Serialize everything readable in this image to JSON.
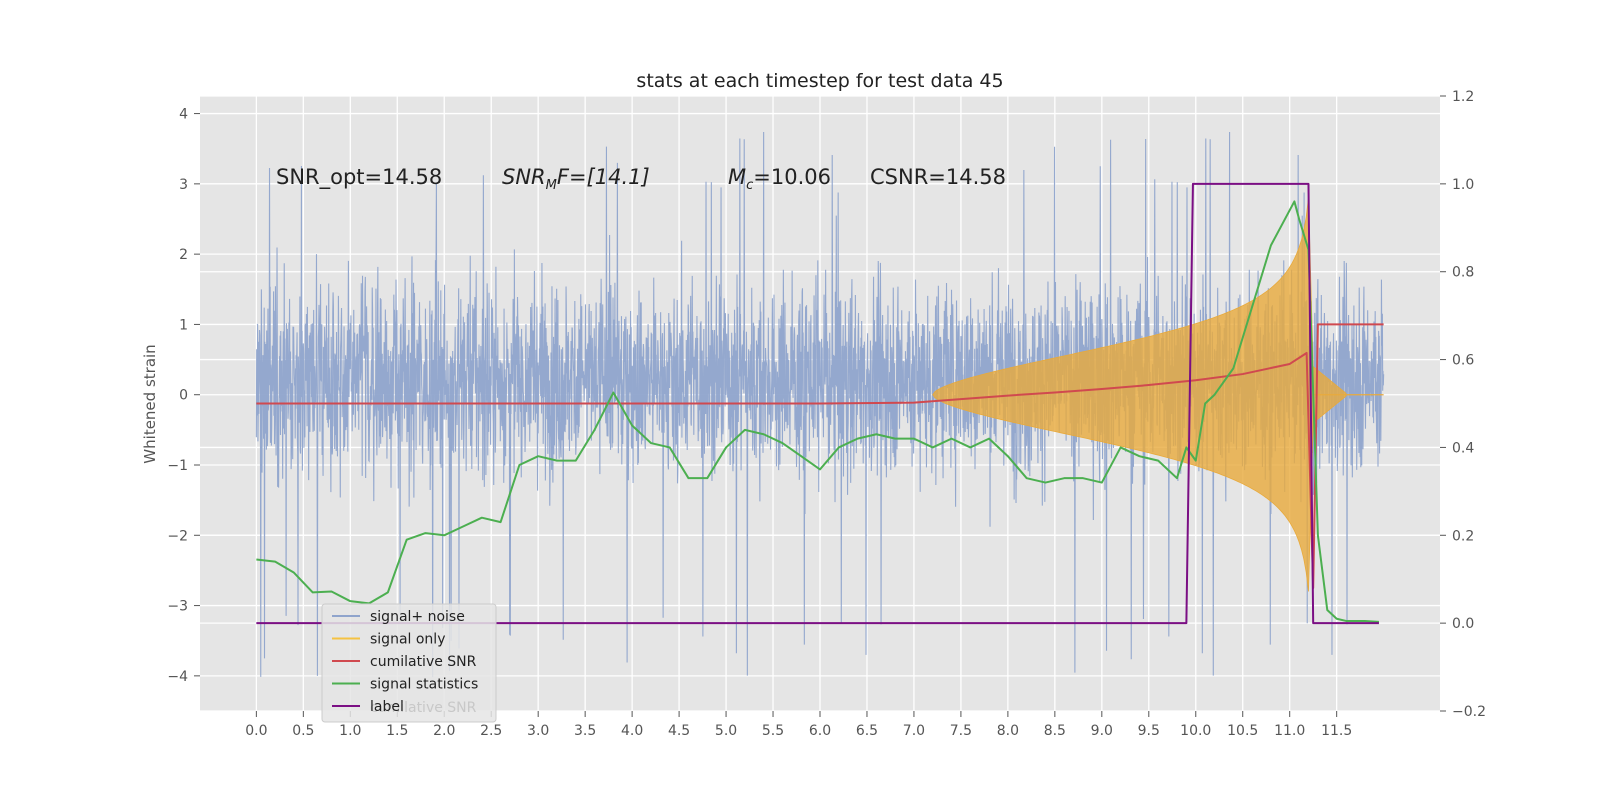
{
  "chart_data": {
    "type": "line",
    "title": "stats at each timestep for test data 45",
    "ylabel": "Whitened strain",
    "xlabel": "",
    "xlim": [
      -0.6,
      12.6
    ],
    "ylim": [
      -4.5,
      4.25
    ],
    "ylim_right": [
      -0.2,
      1.2
    ],
    "grid": true,
    "x_ticks": [
      0.0,
      0.5,
      1.0,
      1.5,
      2.0,
      2.5,
      3.0,
      3.5,
      4.0,
      4.5,
      5.0,
      5.5,
      6.0,
      6.5,
      7.0,
      7.5,
      8.0,
      8.5,
      9.0,
      9.5,
      10.0,
      10.5,
      11.0,
      11.5
    ],
    "x_tick_labels": [
      "0.0",
      "0.5",
      "1.0",
      "1.5",
      "2.0",
      "2.5",
      "3.0",
      "3.5",
      "4.0",
      "4.5",
      "5.0",
      "5.5",
      "6.0",
      "6.5",
      "7.0",
      "7.5",
      "8.0",
      "8.5",
      "9.0",
      "9.5",
      "10.0",
      "10.5",
      "11.0",
      "11.5"
    ],
    "y_ticks": [
      -4,
      -3,
      -2,
      -1,
      0,
      1,
      2,
      3,
      4
    ],
    "y_tick_labels": [
      "−4",
      "−3",
      "−2",
      "−1",
      "0",
      "1",
      "2",
      "3",
      "4"
    ],
    "y_right_ticks": [
      -0.2,
      0.0,
      0.2,
      0.4,
      0.6,
      0.8,
      1.0,
      1.2
    ],
    "y_right_tick_labels": [
      "−0.2",
      "0.0",
      "0.2",
      "0.4",
      "0.6",
      "0.8",
      "1.0",
      "1.2"
    ],
    "annotations": {
      "snr_opt": "SNR_opt=14.58",
      "snr_mf_base": "SNR",
      "snr_mf_sub": "M",
      "snr_mf_rest": "F=[14.1]",
      "mc_base": "M",
      "mc_sub": "c",
      "mc_rest": "=10.06",
      "csnr": "CSNR=14.58"
    },
    "legend": {
      "placement": "lower-left",
      "entries": [
        {
          "label": "signal+ noise",
          "color": "#8fa4cc"
        },
        {
          "label": "signal only",
          "color": "#f5c242"
        },
        {
          "label": "cumilative SNR",
          "color": "#d0494f"
        },
        {
          "label": "signal statistics",
          "color": "#4caf50"
        },
        {
          "label": "label",
          "color": "#7b0f84"
        }
      ],
      "ghost_text": "cumilative SNR"
    },
    "series": [
      {
        "name": "signal+ noise",
        "axis": "left",
        "style": "noise",
        "x_range": [
          0.0,
          12.0
        ],
        "typical_range": [
          -2.0,
          2.6
        ],
        "extremes": [
          -4.1,
          3.8
        ],
        "color": "#8fa4cc"
      },
      {
        "name": "signal only",
        "axis": "left",
        "style": "chirp_envelope",
        "start": 7.2,
        "peak_x": 11.2,
        "peak_amplitude": 2.8,
        "end": 11.25,
        "ringdown": 11.6,
        "color": "#e8aa3c"
      },
      {
        "name": "cumilative SNR",
        "axis": "right",
        "color": "#d0494f",
        "x": [
          0.0,
          6.0,
          7.0,
          7.5,
          8.0,
          8.5,
          9.0,
          9.5,
          10.0,
          10.5,
          11.0,
          11.18,
          11.25,
          11.3,
          12.0
        ],
        "y": [
          0.5,
          0.5,
          0.502,
          0.51,
          0.518,
          0.525,
          0.533,
          0.542,
          0.553,
          0.567,
          0.59,
          0.615,
          0.08,
          0.68,
          0.68
        ]
      },
      {
        "name": "signal statistics",
        "axis": "right",
        "color": "#4caf50",
        "x": [
          0.0,
          0.2,
          0.4,
          0.6,
          0.8,
          1.0,
          1.2,
          1.4,
          1.6,
          1.8,
          2.0,
          2.2,
          2.4,
          2.6,
          2.8,
          3.0,
          3.2,
          3.4,
          3.6,
          3.8,
          4.0,
          4.2,
          4.4,
          4.6,
          4.8,
          5.0,
          5.2,
          5.4,
          5.6,
          5.8,
          6.0,
          6.2,
          6.4,
          6.6,
          6.8,
          7.0,
          7.2,
          7.4,
          7.6,
          7.8,
          8.0,
          8.2,
          8.4,
          8.6,
          8.8,
          9.0,
          9.2,
          9.4,
          9.6,
          9.8,
          9.9,
          10.0,
          10.1,
          10.2,
          10.4,
          10.6,
          10.8,
          10.9,
          11.0,
          11.05,
          11.1,
          11.2,
          11.3,
          11.4,
          11.5,
          11.6,
          11.8,
          11.95
        ],
        "y": [
          0.145,
          0.14,
          0.115,
          0.07,
          0.072,
          0.05,
          0.045,
          0.07,
          0.19,
          0.205,
          0.2,
          0.22,
          0.24,
          0.23,
          0.36,
          0.38,
          0.37,
          0.37,
          0.44,
          0.525,
          0.45,
          0.41,
          0.4,
          0.33,
          0.33,
          0.4,
          0.44,
          0.43,
          0.41,
          0.38,
          0.35,
          0.4,
          0.42,
          0.43,
          0.42,
          0.42,
          0.4,
          0.42,
          0.4,
          0.42,
          0.38,
          0.33,
          0.32,
          0.33,
          0.33,
          0.32,
          0.4,
          0.38,
          0.37,
          0.33,
          0.4,
          0.37,
          0.5,
          0.52,
          0.58,
          0.72,
          0.86,
          0.9,
          0.94,
          0.96,
          0.92,
          0.85,
          0.2,
          0.03,
          0.01,
          0.005,
          0.005,
          0.003
        ]
      },
      {
        "name": "label",
        "axis": "right",
        "color": "#7b0f84",
        "x": [
          0.0,
          9.9,
          9.97,
          11.2,
          11.25,
          11.95
        ],
        "y": [
          0.0,
          0.0,
          1.0,
          1.0,
          0.0,
          0.0
        ]
      }
    ]
  }
}
